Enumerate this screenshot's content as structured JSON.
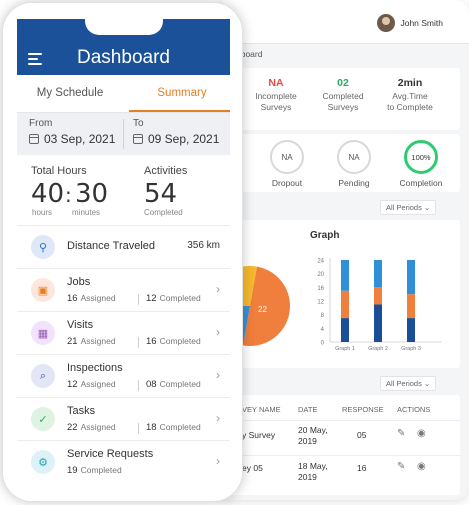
{
  "desktop": {
    "user_name": "John Smith",
    "breadcrumb": "hboard",
    "stats": [
      {
        "value": "NA",
        "label_1": "Incomplete",
        "label_2": "Surveys",
        "color": "#e74c3c"
      },
      {
        "value": "02",
        "label_1": "Completed",
        "label_2": "Surveys",
        "color": "#27ae60"
      },
      {
        "value": "2min",
        "label_1": "Avg.Time",
        "label_2": "to Complete",
        "color": "#333333"
      }
    ],
    "circles": [
      {
        "value": "NA",
        "label": "Dropout"
      },
      {
        "value": "NA",
        "label": "Pending"
      },
      {
        "value": "100%",
        "label": "Completion"
      }
    ],
    "period_filter": "All Periods",
    "period_filter_2": "All Periods",
    "graph_title": "Graph",
    "table": {
      "headers": [
        "VEY NAME",
        "DATE",
        "RESPONSE",
        "ACTIONS"
      ],
      "rows": [
        {
          "name": "y Survey",
          "date_1": "20 May,",
          "date_2": "2019",
          "response": "05"
        },
        {
          "name": "ey 05",
          "date_1": "18 May,",
          "date_2": "2019",
          "response": "16"
        }
      ]
    }
  },
  "chart_data": [
    {
      "type": "pie",
      "title": "",
      "slices": [
        {
          "label": "22",
          "color": "#f07e3c"
        },
        {
          "label": "",
          "color": "#f5b82e"
        },
        {
          "label": "",
          "color": "#3a8fd6"
        }
      ]
    },
    {
      "type": "bar",
      "title": "Graph",
      "categories": [
        "Graph 1",
        "Graph 2",
        "Graph 3"
      ],
      "y_ticks": [
        "0",
        "4",
        "8",
        "12",
        "16",
        "20",
        "24"
      ],
      "ylim": [
        0,
        24
      ],
      "series": [
        {
          "values": [
            7,
            11,
            7
          ],
          "color": "#1a4f98"
        },
        {
          "values": [
            8,
            5,
            7
          ],
          "color": "#f07e3c"
        },
        {
          "values": [
            9,
            8,
            10
          ],
          "color": "#2f8fd8"
        }
      ]
    }
  ],
  "phone": {
    "title": "Dashboard",
    "tabs": [
      "My Schedule",
      "Summary"
    ],
    "from_label": "From",
    "from_date": "03 Sep, 2021",
    "to_label": "To",
    "to_date": "09 Sep, 2021",
    "total_hours_label": "Total Hours",
    "hours_value": "40",
    "hours_unit": "hours",
    "minutes_value": "30",
    "minutes_unit": "minutes",
    "activities_label": "Activities",
    "activities_value": "54",
    "activities_sub": "Completed",
    "distance_label": "Distance Traveled",
    "distance_value": "356 km",
    "items": [
      {
        "title": "Jobs",
        "assigned": "16",
        "completed": "12"
      },
      {
        "title": "Visits",
        "assigned": "21",
        "completed": "16"
      },
      {
        "title": "Inspections",
        "assigned": "12",
        "completed": "08"
      },
      {
        "title": "Tasks",
        "assigned": "22",
        "completed": "18"
      },
      {
        "title": "Service Requests",
        "assigned": "19",
        "completed": ""
      }
    ],
    "assigned_label": "Assigned",
    "completed_label": "Completed"
  }
}
